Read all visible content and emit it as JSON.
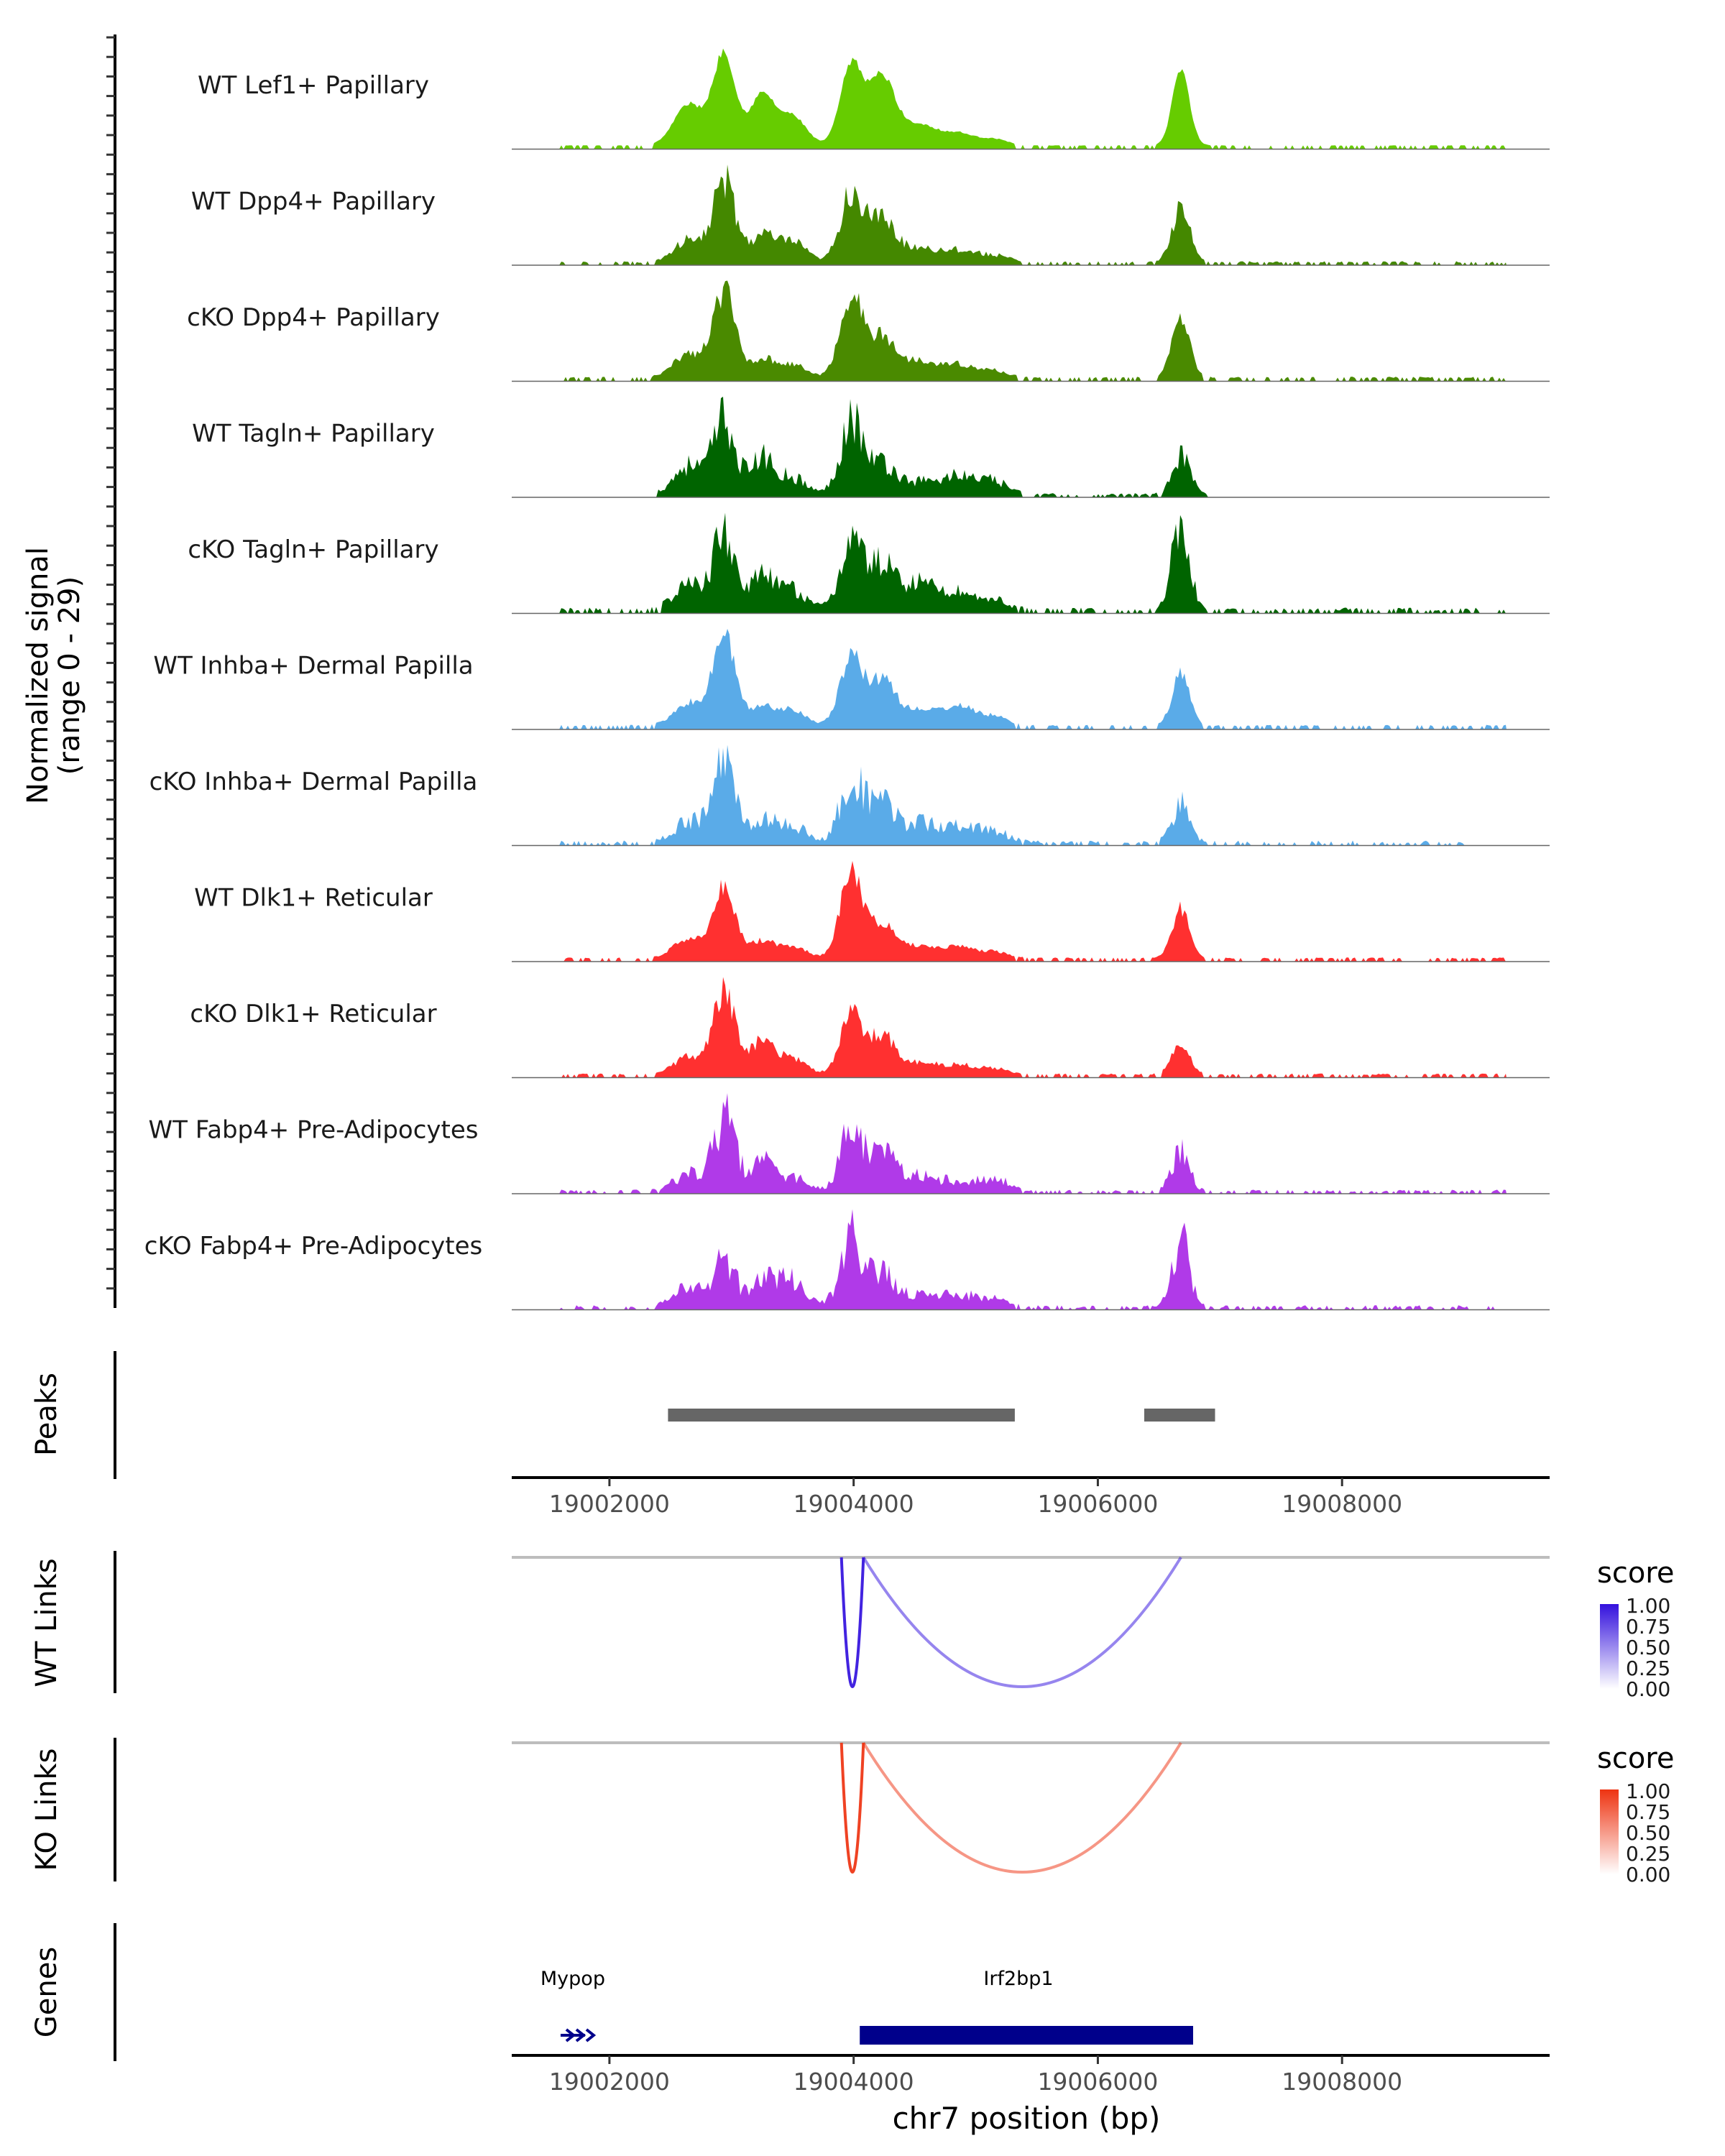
{
  "chart_data": {
    "type": "area",
    "description_chromosome": "chr7",
    "xlim": [
      19001200,
      19009700
    ],
    "y_axis_title_line1": "Normalized signal",
    "y_axis_title_line2": "(range 0 - 29)",
    "signal_range": [
      0,
      29
    ],
    "tracks": [
      {
        "name": "WT Lef1+ Papillary",
        "color": "#66cc00",
        "profile": 1
      },
      {
        "name": "WT Dpp4+ Papillary",
        "color": "#448800",
        "profile": 2
      },
      {
        "name": "cKO Dpp4+ Papillary",
        "color": "#4a8a00",
        "profile": 3
      },
      {
        "name": "WT Tagln+ Papillary",
        "color": "#006400",
        "profile": 4
      },
      {
        "name": "cKO Tagln+ Papillary",
        "color": "#006400",
        "profile": 5
      },
      {
        "name": "WT Inhba+ Dermal Papilla",
        "color": "#5aabe8",
        "profile": 6
      },
      {
        "name": "cKO Inhba+ Dermal Papilla",
        "color": "#5aabe8",
        "profile": 7
      },
      {
        "name": "WT Dlk1+ Reticular",
        "color": "#ff3030",
        "profile": 8
      },
      {
        "name": "cKO Dlk1+ Reticular",
        "color": "#ff3030",
        "profile": 9
      },
      {
        "name": "WT Fabp4+ Pre-Adipocytes",
        "color": "#b03ae8",
        "profile": 10
      },
      {
        "name": "cKO Fabp4+ Pre-Adipocytes",
        "color": "#b03ae8",
        "profile": 11
      }
    ],
    "peaks": {
      "title": "Peaks",
      "color": "#666666",
      "regions": [
        [
          19002480,
          19005320
        ],
        [
          19006380,
          19006960
        ]
      ]
    },
    "position_axis": {
      "ticks": [
        19002000,
        19004000,
        19006000,
        19008000
      ],
      "tick_labels": [
        "19002000",
        "19004000",
        "19006000",
        "19008000"
      ]
    },
    "wt_links": {
      "title": "WT Links",
      "legend_title": "score",
      "legend_labels": [
        "1.00",
        "0.75",
        "0.50",
        "0.25",
        "0.00"
      ],
      "color_high": "#3311dd",
      "links": [
        {
          "start": 19003900,
          "end": 19004080,
          "score": 0.9,
          "depth": 1.0
        },
        {
          "start": 19004080,
          "end": 19006680,
          "score": 0.35,
          "depth": 1.0
        }
      ]
    },
    "ko_links": {
      "title": "KO Links",
      "legend_title": "score",
      "legend_labels": [
        "1.00",
        "0.75",
        "0.50",
        "0.25",
        "0.00"
      ],
      "color_high": "#ee3311",
      "links": [
        {
          "start": 19003900,
          "end": 19004080,
          "score": 0.9,
          "depth": 1.0
        },
        {
          "start": 19004080,
          "end": 19006680,
          "score": 0.35,
          "depth": 1.0
        }
      ]
    },
    "genes": {
      "title": "Genes",
      "color": "#00008b",
      "items": [
        {
          "name": "Mypop",
          "start": 19001600,
          "end": 19001800,
          "label_pos": 19001700,
          "thick": false
        },
        {
          "name": "Irf2bp1",
          "start": 19004050,
          "end": 19006780,
          "label_pos": 19005350,
          "thick": true
        }
      ]
    },
    "xlabel": "chr7 position (bp)"
  }
}
